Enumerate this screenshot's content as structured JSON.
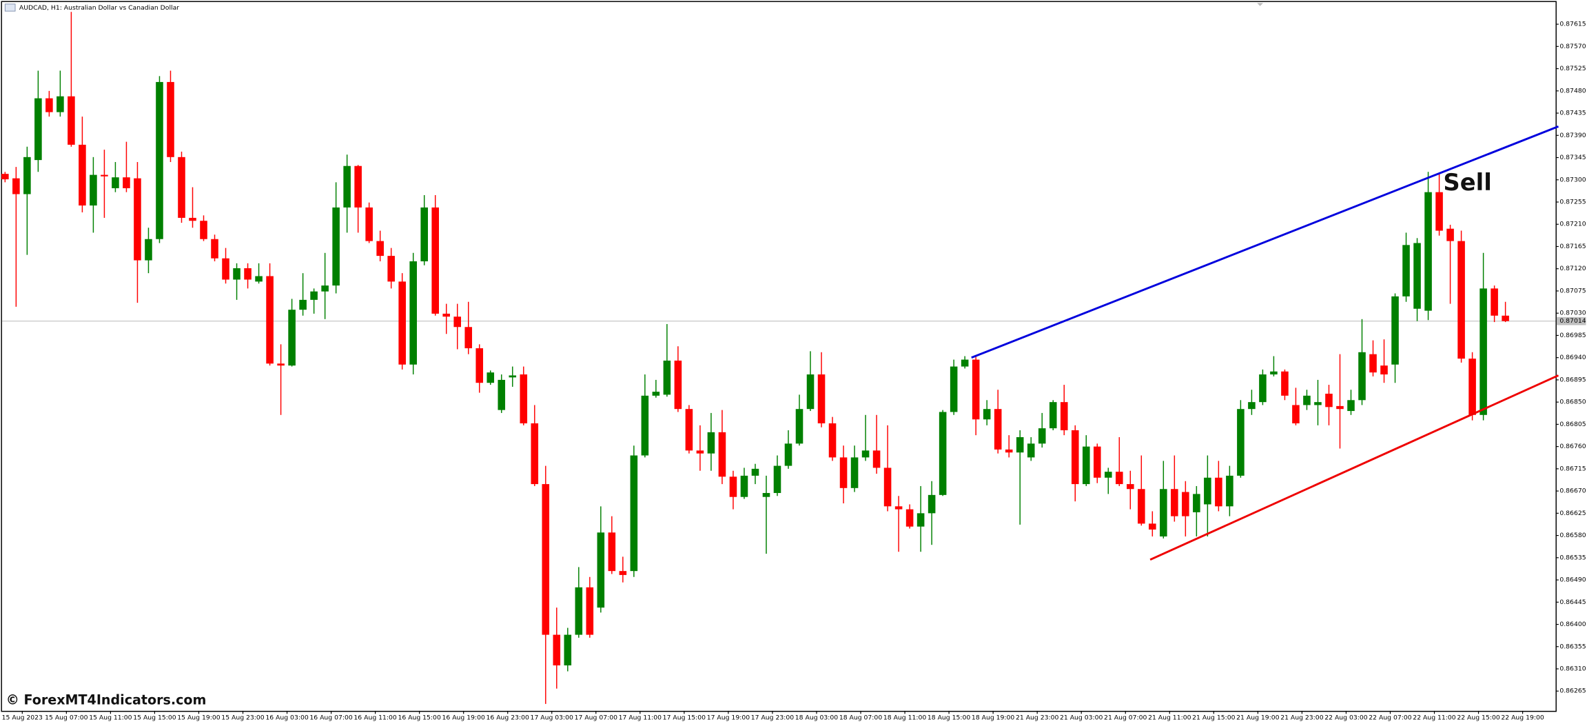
{
  "chart_data": {
    "type": "candlestick",
    "title": "AUDCAD, H1: Australian Dollar vs Canadian Dollar",
    "annotation": "Sell",
    "watermark": "© ForexMT4Indicators.com",
    "up_color": "#008000",
    "down_color": "#ff0000",
    "ylim": [
      0.86225,
      0.87664
    ],
    "yticks": [
      {
        "value": 0.87615,
        "label": "0.87615"
      },
      {
        "value": 0.8757,
        "label": "0.87570"
      },
      {
        "value": 0.87525,
        "label": "0.87525"
      },
      {
        "value": 0.8748,
        "label": "0.87480"
      },
      {
        "value": 0.87435,
        "label": "0.87435"
      },
      {
        "value": 0.8739,
        "label": "0.87390"
      },
      {
        "value": 0.87345,
        "label": "0.87345"
      },
      {
        "value": 0.873,
        "label": "0.87300"
      },
      {
        "value": 0.87255,
        "label": "0.87255"
      },
      {
        "value": 0.8721,
        "label": "0.87210"
      },
      {
        "value": 0.87165,
        "label": "0.87165"
      },
      {
        "value": 0.8712,
        "label": "0.87120"
      },
      {
        "value": 0.87075,
        "label": "0.87075"
      },
      {
        "value": 0.8703,
        "label": "0.87030"
      },
      {
        "value": 0.86985,
        "label": "0.86985"
      },
      {
        "value": 0.8694,
        "label": "0.86940"
      },
      {
        "value": 0.86895,
        "label": "0.86895"
      },
      {
        "value": 0.8685,
        "label": "0.86850"
      },
      {
        "value": 0.86805,
        "label": "0.86805"
      },
      {
        "value": 0.8676,
        "label": "0.86760"
      },
      {
        "value": 0.86715,
        "label": "0.86715"
      },
      {
        "value": 0.8667,
        "label": "0.86670"
      },
      {
        "value": 0.86625,
        "label": "0.86625"
      },
      {
        "value": 0.8658,
        "label": "0.86580"
      },
      {
        "value": 0.86535,
        "label": "0.86535"
      },
      {
        "value": 0.8649,
        "label": "0.86490"
      },
      {
        "value": 0.86445,
        "label": "0.86445"
      },
      {
        "value": 0.864,
        "label": "0.86400"
      },
      {
        "value": 0.86355,
        "label": "0.86355"
      },
      {
        "value": 0.8631,
        "label": "0.86310"
      },
      {
        "value": 0.86265,
        "label": "0.86265"
      }
    ],
    "current_price": {
      "value": 0.87014,
      "label": "0.87014"
    },
    "xtick_labels": [
      "15 Aug 2023",
      "15 Aug 07:00",
      "15 Aug 11:00",
      "15 Aug 15:00",
      "15 Aug 19:00",
      "15 Aug 23:00",
      "16 Aug 03:00",
      "16 Aug 07:00",
      "16 Aug 11:00",
      "16 Aug 15:00",
      "16 Aug 19:00",
      "16 Aug 23:00",
      "17 Aug 03:00",
      "17 Aug 07:00",
      "17 Aug 11:00",
      "17 Aug 15:00",
      "17 Aug 19:00",
      "17 Aug 23:00",
      "18 Aug 03:00",
      "18 Aug 07:00",
      "18 Aug 11:00",
      "18 Aug 15:00",
      "18 Aug 19:00",
      "21 Aug 23:00",
      "21 Aug 03:00",
      "21 Aug 07:00",
      "21 Aug 11:00",
      "21 Aug 15:00",
      "21 Aug 19:00",
      "21 Aug 23:00",
      "22 Aug 03:00",
      "22 Aug 07:00",
      "22 Aug 11:00",
      "22 Aug 15:00",
      "22 Aug 19:00"
    ],
    "trendlines": [
      {
        "color": "#0000dd",
        "x": [
          87.6,
          140.8
        ],
        "price": [
          0.8694,
          0.87408
        ]
      },
      {
        "color": "#ee0000",
        "x": [
          103.8,
          140.8
        ],
        "price": [
          0.86531,
          0.86904
        ]
      }
    ],
    "open": [
      0.87312,
      0.87303,
      0.87271,
      0.8734,
      0.87465,
      0.87437,
      0.87469,
      0.87371,
      0.87248,
      0.8731,
      0.87283,
      0.87305,
      0.87303,
      0.87137,
      0.8718,
      0.87498,
      0.87346,
      0.87223,
      0.87217,
      0.8718,
      0.87141,
      0.87098,
      0.87121,
      0.87094,
      0.87105,
      0.86928,
      0.86924,
      0.87037,
      0.87057,
      0.87074,
      0.87086,
      0.87244,
      0.87328,
      0.87244,
      0.87176,
      0.87146,
      0.87094,
      0.86926,
      0.87135,
      0.87244,
      0.87029,
      0.87023,
      0.87002,
      0.86959,
      0.86889,
      0.86834,
      0.869,
      0.86906,
      0.86807,
      0.86684,
      0.86379,
      0.86317,
      0.86379,
      0.86475,
      0.86434,
      0.86586,
      0.86508,
      0.86508,
      0.86742,
      0.86863,
      0.86865,
      0.86934,
      0.86836,
      0.86752,
      0.86746,
      0.86789,
      0.86699,
      0.86658,
      0.86701,
      0.86658,
      0.86666,
      0.86721,
      0.86766,
      0.86836,
      0.86906,
      0.86807,
      0.86738,
      0.86676,
      0.86738,
      0.86752,
      0.86717,
      0.86639,
      0.86633,
      0.86598,
      0.86625,
      0.86662,
      0.8683,
      0.86922,
      0.86936,
      0.86815,
      0.86836,
      0.86754,
      0.86748,
      0.86738,
      0.86766,
      0.86797,
      0.8685,
      0.86793,
      0.86684,
      0.8676,
      0.86697,
      0.86709,
      0.86684,
      0.86674,
      0.86604,
      0.86578,
      0.86674,
      0.86668,
      0.86627,
      0.86643,
      0.86697,
      0.86639,
      0.86701,
      0.86836,
      0.8685,
      0.86906,
      0.86912,
      0.86844,
      0.86844,
      0.86844,
      0.86867,
      0.86842,
      0.86832,
      0.86854,
      0.86947,
      0.86924,
      0.86926,
      0.87064,
      0.87039,
      0.87035,
      0.87275,
      0.87201,
      0.87176,
      0.86938,
      0.86824,
      0.8708,
      0.87025
    ],
    "high": [
      0.87316,
      0.87326,
      0.87367,
      0.87521,
      0.8748,
      0.87521,
      0.8764,
      0.87428,
      0.87346,
      0.87361,
      0.87336,
      0.87377,
      0.87336,
      0.87203,
      0.8751,
      0.87521,
      0.87357,
      0.87285,
      0.87228,
      0.87189,
      0.87162,
      0.87131,
      0.87131,
      0.87131,
      0.87131,
      0.86967,
      0.87059,
      0.87111,
      0.8708,
      0.87152,
      0.87295,
      0.87351,
      0.8733,
      0.87254,
      0.87197,
      0.87162,
      0.87111,
      0.87152,
      0.87269,
      0.87269,
      0.87049,
      0.87049,
      0.87053,
      0.86967,
      0.86914,
      0.86906,
      0.86922,
      0.86922,
      0.86844,
      0.86721,
      0.86434,
      0.86393,
      0.86516,
      0.86496,
      0.86639,
      0.86619,
      0.86537,
      0.86762,
      0.86906,
      0.86895,
      0.87008,
      0.86963,
      0.86844,
      0.86803,
      0.86828,
      0.86834,
      0.86711,
      0.86717,
      0.86725,
      0.86701,
      0.86742,
      0.86793,
      0.86865,
      0.86953,
      0.86951,
      0.8682,
      0.86762,
      0.86762,
      0.86824,
      0.86824,
      0.86803,
      0.8666,
      0.86643,
      0.8668,
      0.8669,
      0.86834,
      0.86936,
      0.86943,
      0.86943,
      0.86854,
      0.86875,
      0.86783,
      0.86793,
      0.86779,
      0.86828,
      0.86854,
      0.86885,
      0.86803,
      0.86783,
      0.86766,
      0.86717,
      0.86779,
      0.86711,
      0.86742,
      0.86629,
      0.86731,
      0.86742,
      0.8669,
      0.8668,
      0.86742,
      0.86731,
      0.86721,
      0.86854,
      0.86875,
      0.86916,
      0.86943,
      0.86916,
      0.86879,
      0.86875,
      0.86895,
      0.86885,
      0.86947,
      0.86875,
      0.87018,
      0.86975,
      0.86977,
      0.8707,
      0.87193,
      0.87182,
      0.87316,
      0.87312,
      0.87209,
      0.87197,
      0.86951,
      0.87152,
      0.87086,
      0.87053
    ],
    "low": [
      0.87295,
      0.87043,
      0.87148,
      0.87316,
      0.87428,
      0.87428,
      0.87367,
      0.87234,
      0.87193,
      0.87223,
      0.87275,
      0.87275,
      0.87051,
      0.87111,
      0.87172,
      0.87336,
      0.87213,
      0.87203,
      0.87176,
      0.87135,
      0.8709,
      0.87057,
      0.8708,
      0.8709,
      0.86924,
      0.86824,
      0.86922,
      0.87025,
      0.87029,
      0.87018,
      0.8707,
      0.87193,
      0.87193,
      0.87172,
      0.87135,
      0.8708,
      0.86916,
      0.86906,
      0.87127,
      0.87025,
      0.86988,
      0.86957,
      0.86947,
      0.86869,
      0.86885,
      0.86828,
      0.86881,
      0.86803,
      0.8668,
      0.86239,
      0.8627,
      0.86305,
      0.86373,
      0.86373,
      0.86424,
      0.86502,
      0.86485,
      0.86496,
      0.86738,
      0.86859,
      0.86861,
      0.8683,
      0.86746,
      0.86711,
      0.86711,
      0.86684,
      0.86633,
      0.86654,
      0.86684,
      0.86543,
      0.8666,
      0.86715,
      0.86762,
      0.86832,
      0.86799,
      0.86731,
      0.86645,
      0.86668,
      0.86731,
      0.86705,
      0.86629,
      0.86547,
      0.86594,
      0.86547,
      0.86561,
      0.8666,
      0.86824,
      0.86918,
      0.86783,
      0.86803,
      0.86746,
      0.86738,
      0.86602,
      0.86731,
      0.86758,
      0.86793,
      0.86783,
      0.86649,
      0.8668,
      0.86686,
      0.86664,
      0.8668,
      0.86633,
      0.866,
      0.86578,
      0.86574,
      0.86608,
      0.86578,
      0.86578,
      0.86578,
      0.86629,
      0.86619,
      0.86697,
      0.86824,
      0.86844,
      0.86902,
      0.86854,
      0.86803,
      0.86834,
      0.86803,
      0.86803,
      0.86756,
      0.86824,
      0.86844,
      0.86902,
      0.86889,
      0.86889,
      0.87053,
      0.87014,
      0.87016,
      0.87187,
      0.87049,
      0.8693,
      0.86813,
      0.86813,
      0.87012,
      0.87012
    ],
    "close": [
      0.87301,
      0.87271,
      0.87346,
      0.87465,
      0.87437,
      0.87469,
      0.87371,
      0.87248,
      0.8731,
      0.87307,
      0.87305,
      0.87283,
      0.87137,
      0.8718,
      0.87498,
      0.87346,
      0.87223,
      0.87217,
      0.8718,
      0.87141,
      0.87098,
      0.87121,
      0.87098,
      0.87105,
      0.86928,
      0.86924,
      0.87037,
      0.87057,
      0.87074,
      0.87086,
      0.87244,
      0.87328,
      0.87244,
      0.87176,
      0.87146,
      0.87094,
      0.86926,
      0.87135,
      0.87244,
      0.87029,
      0.87023,
      0.87002,
      0.86959,
      0.86889,
      0.8691,
      0.86895,
      0.86904,
      0.86807,
      0.86684,
      0.86379,
      0.86317,
      0.86379,
      0.86475,
      0.86379,
      0.86586,
      0.86508,
      0.865,
      0.86742,
      0.86863,
      0.86871,
      0.86934,
      0.86836,
      0.86752,
      0.86746,
      0.86789,
      0.86699,
      0.86658,
      0.86701,
      0.86715,
      0.86666,
      0.86721,
      0.86766,
      0.86836,
      0.86906,
      0.86807,
      0.86738,
      0.86676,
      0.86738,
      0.86752,
      0.86717,
      0.86639,
      0.86633,
      0.86598,
      0.86625,
      0.86662,
      0.8683,
      0.86922,
      0.86936,
      0.86815,
      0.86836,
      0.86754,
      0.86748,
      0.86779,
      0.86766,
      0.86797,
      0.8685,
      0.86793,
      0.86684,
      0.8676,
      0.86697,
      0.86709,
      0.86684,
      0.86674,
      0.86604,
      0.86592,
      0.86674,
      0.86619,
      0.86619,
      0.86664,
      0.86697,
      0.86639,
      0.86701,
      0.86836,
      0.8685,
      0.86906,
      0.86912,
      0.86863,
      0.86807,
      0.86863,
      0.8685,
      0.8684,
      0.86836,
      0.86854,
      0.86951,
      0.8691,
      0.86906,
      0.87064,
      0.87168,
      0.87172,
      0.87275,
      0.87197,
      0.87176,
      0.86938,
      0.86824,
      0.8708,
      0.87025,
      0.87014
    ]
  }
}
